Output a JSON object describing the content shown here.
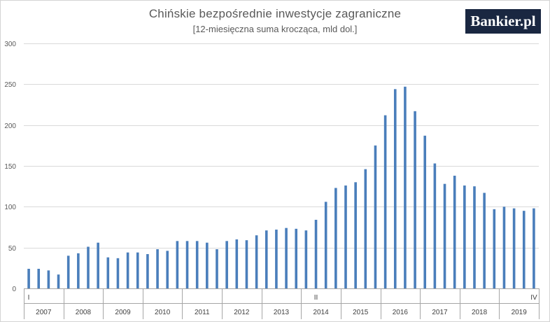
{
  "header": {
    "title": "Chińskie bezpośrednie inwestycje zagraniczne",
    "subtitle": "[12-miesięczna suma krocząca, mld dol.]",
    "logo": "Bankier.pl"
  },
  "colors": {
    "bar": "#4a7ebb",
    "grid": "#d9d9d9",
    "axis": "#a6a6a6",
    "logo_bg": "#1a2741"
  },
  "chart_data": {
    "type": "bar",
    "title": "Chińskie bezpośrednie inwestycje zagraniczne",
    "subtitle": "[12-miesięczna suma krocząca, mld dol.]",
    "xlabel": "",
    "ylabel": "",
    "ylim": [
      0,
      300
    ],
    "yticks": [
      0,
      50,
      100,
      150,
      200,
      250,
      300
    ],
    "grid": true,
    "legend": "none",
    "years": [
      "2007",
      "2008",
      "2009",
      "2010",
      "2011",
      "2012",
      "2013",
      "2014",
      "2015",
      "2016",
      "2017",
      "2018",
      "2019"
    ],
    "quarter_labels": [
      {
        "index": 0,
        "text": "I"
      },
      {
        "index": 29,
        "text": "II"
      },
      {
        "index": 51,
        "text": "IV"
      }
    ],
    "values": [
      24,
      24,
      22,
      17,
      40,
      43,
      51,
      56,
      38,
      37,
      44,
      44,
      42,
      48,
      46,
      58,
      58,
      58,
      56,
      48,
      58,
      60,
      59,
      65,
      71,
      72,
      74,
      73,
      71,
      84,
      106,
      123,
      126,
      130,
      146,
      175,
      212,
      244,
      247,
      217,
      187,
      153,
      128,
      138,
      126,
      125,
      117,
      97,
      100,
      98,
      95,
      98
    ]
  }
}
